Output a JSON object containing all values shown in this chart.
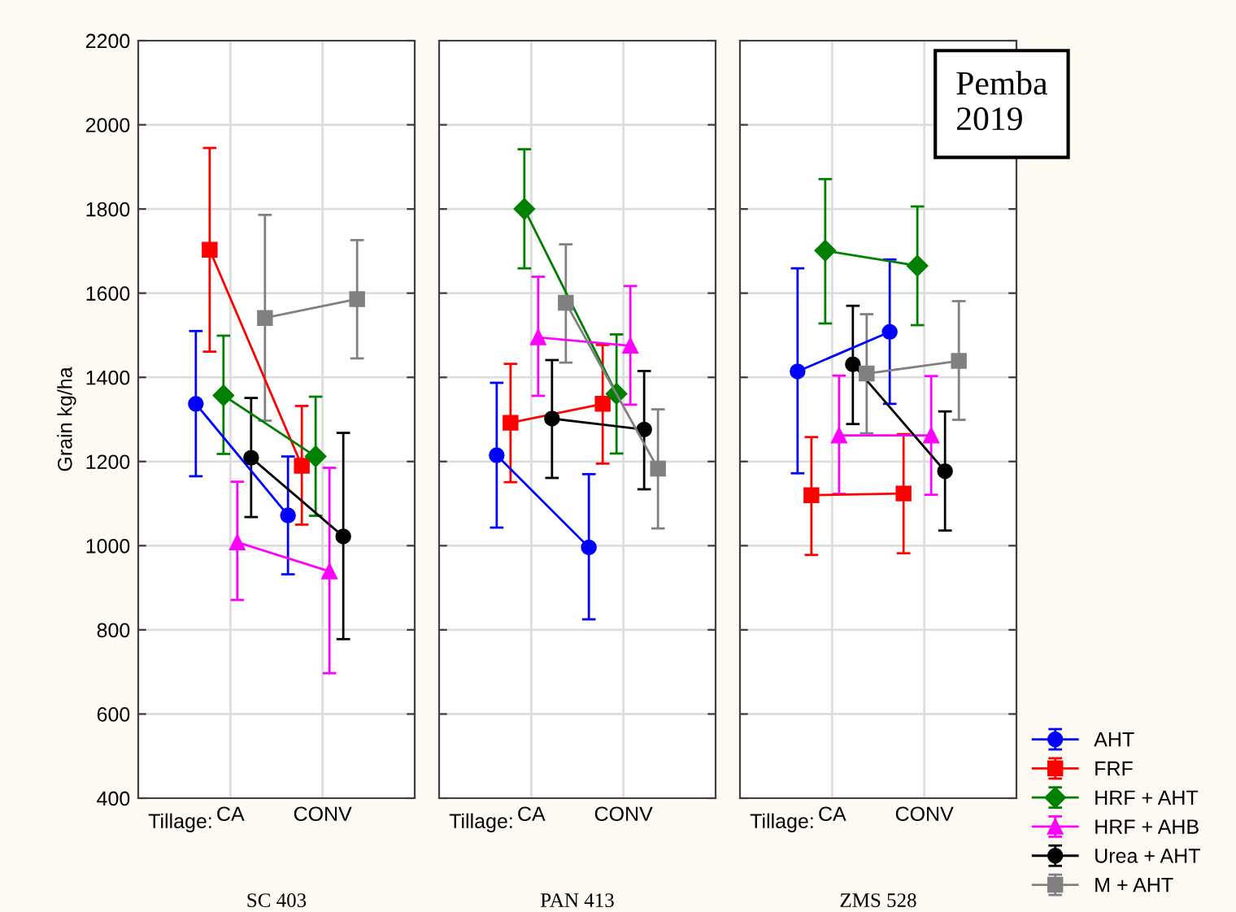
{
  "chart_data": [
    {
      "type": "line",
      "xlabel": "SC 403",
      "ylabel": "Grain kg/ha",
      "annotations": [
        "Tillage:"
      ],
      "categories": [
        "CA",
        "CONV"
      ],
      "ylim": [
        400,
        2200
      ],
      "yticks": [
        400,
        600,
        800,
        1000,
        1200,
        1400,
        1600,
        1800,
        2000,
        2200
      ],
      "grid": true,
      "legend": false,
      "series": [
        {
          "color": "#0000ff",
          "marker": "circle",
          "values": [
            1337,
            1072
          ],
          "errors": [
            [
              1165,
              1510
            ],
            [
              932,
              1212
            ]
          ]
        },
        {
          "color": "#ff0000",
          "marker": "square",
          "values": [
            1703,
            1190
          ],
          "errors": [
            [
              1461,
              1945
            ],
            [
              1050,
              1332
            ]
          ]
        },
        {
          "color": "#008000",
          "marker": "diamond",
          "values": [
            1357,
            1212
          ],
          "errors": [
            [
              1218,
              1499
            ],
            [
              1071,
              1354
            ]
          ]
        },
        {
          "color": "#ff00ff",
          "marker": "triangle",
          "values": [
            1008,
            939
          ],
          "errors": [
            [
              871,
              1152
            ],
            [
              697,
              1185
            ]
          ]
        },
        {
          "color": "#000000",
          "marker": "circle",
          "values": [
            1209,
            1022
          ],
          "errors": [
            [
              1068,
              1351
            ],
            [
              778,
              1268
            ]
          ]
        },
        {
          "color": "#808080",
          "marker": "square",
          "values": [
            1541,
            1586
          ],
          "errors": [
            [
              1297,
              1786
            ],
            [
              1445,
              1726
            ]
          ]
        }
      ]
    },
    {
      "type": "line",
      "xlabel": "PAN 413",
      "annotations": [
        "Tillage:"
      ],
      "categories": [
        "CA",
        "CONV"
      ],
      "ylim": [
        400,
        2200
      ],
      "yticks": [
        400,
        600,
        800,
        1000,
        1200,
        1400,
        1600,
        1800,
        2000,
        2200
      ],
      "tick_labels": "x",
      "grid": true,
      "legend": false,
      "series": [
        {
          "color": "#0000ff",
          "marker": "circle",
          "values": [
            1215,
            996
          ],
          "errors": [
            [
              1043,
              1387
            ],
            [
              825,
              1170
            ]
          ]
        },
        {
          "color": "#ff0000",
          "marker": "square",
          "values": [
            1292,
            1337
          ],
          "errors": [
            [
              1151,
              1432
            ],
            [
              1195,
              1477
            ]
          ]
        },
        {
          "color": "#008000",
          "marker": "diamond",
          "values": [
            1800,
            1361
          ],
          "errors": [
            [
              1659,
              1942
            ],
            [
              1219,
              1502
            ]
          ]
        },
        {
          "color": "#ff00ff",
          "marker": "triangle",
          "values": [
            1495,
            1475
          ],
          "errors": [
            [
              1356,
              1639
            ],
            [
              1335,
              1617
            ]
          ]
        },
        {
          "color": "#000000",
          "marker": "circle",
          "values": [
            1302,
            1276
          ],
          "errors": [
            [
              1161,
              1441
            ],
            [
              1134,
              1415
            ]
          ]
        },
        {
          "color": "#808080",
          "marker": "square",
          "values": [
            1577,
            1183
          ],
          "errors": [
            [
              1435,
              1716
            ],
            [
              1041,
              1324
            ]
          ]
        }
      ]
    },
    {
      "type": "line",
      "xlabel": "ZMS 528",
      "annotations": [
        "Tillage:",
        "Pemba\n2019"
      ],
      "categories": [
        "CA",
        "CONV"
      ],
      "ylim": [
        400,
        2200
      ],
      "yticks": [
        400,
        600,
        800,
        1000,
        1200,
        1400,
        1600,
        1800,
        2000,
        2200
      ],
      "tick_labels": "x",
      "grid": true,
      "legend": "bottom right",
      "series": [
        {
          "name": "AHT",
          "color": "#0000ff",
          "marker": "circle",
          "values": [
            1414,
            1508
          ],
          "errors": [
            [
              1172,
              1659
            ],
            [
              1337,
              1680
            ]
          ]
        },
        {
          "name": "FRF",
          "color": "#ff0000",
          "marker": "square",
          "values": [
            1120,
            1124
          ],
          "errors": [
            [
              978,
              1258
            ],
            [
              982,
              1265
            ]
          ]
        },
        {
          "name": "HRF + AHT",
          "color": "#008000",
          "marker": "diamond",
          "values": [
            1701,
            1665
          ],
          "errors": [
            [
              1528,
              1871
            ],
            [
              1524,
              1806
            ]
          ]
        },
        {
          "name": "HRF + AHB",
          "color": "#ff00ff",
          "marker": "triangle",
          "values": [
            1262,
            1262
          ],
          "errors": [
            [
              1123,
              1404
            ],
            [
              1121,
              1403
            ]
          ]
        },
        {
          "name": "Urea + AHT",
          "color": "#000000",
          "marker": "circle",
          "values": [
            1431,
            1177
          ],
          "errors": [
            [
              1289,
              1570
            ],
            [
              1036,
              1319
            ]
          ]
        },
        {
          "name": "M + AHT",
          "color": "#808080",
          "marker": "square",
          "values": [
            1409,
            1439
          ],
          "errors": [
            [
              1267,
              1550
            ],
            [
              1299,
              1581
            ]
          ]
        }
      ]
    }
  ]
}
